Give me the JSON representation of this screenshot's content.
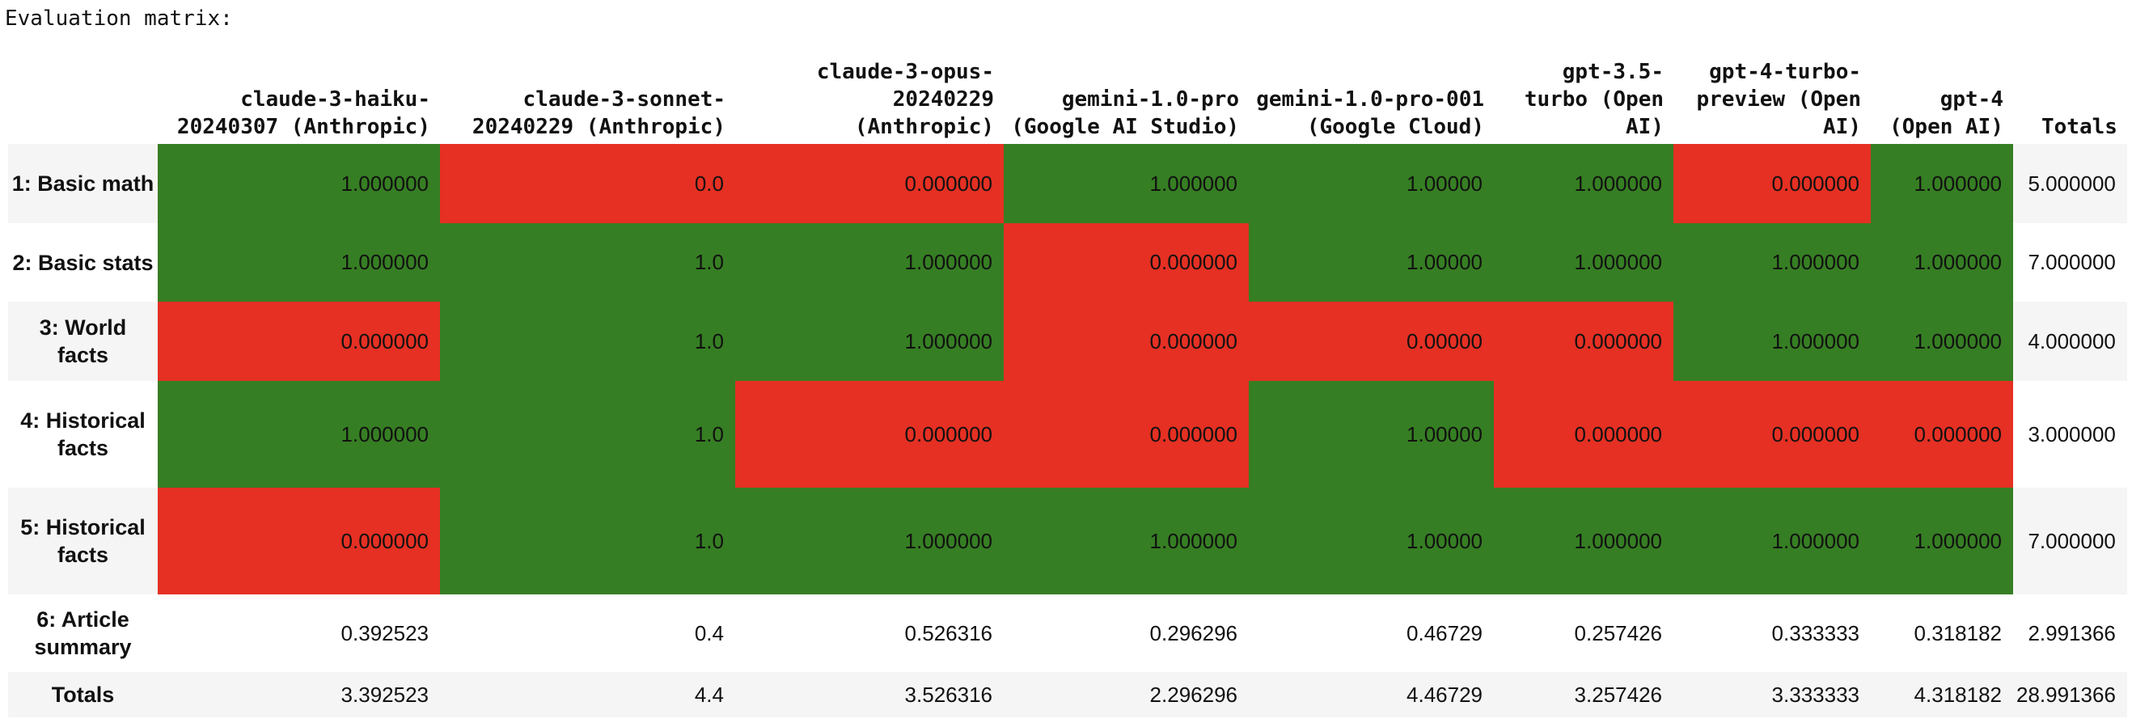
{
  "caption": "Evaluation matrix:",
  "colors": {
    "pass": "#367e23",
    "fail": "#e53023",
    "stripe": "#f5f5f5"
  },
  "columns": [
    "claude-3-haiku-20240307 (Anthropic)",
    "claude-3-sonnet-20240229 (Anthropic)",
    "claude-3-opus-20240229 (Anthropic)",
    "gemini-1.0-pro (Google AI Studio)",
    "gemini-1.0-pro-001 (Google Cloud)",
    "gpt-3.5-turbo (Open AI)",
    "gpt-4-turbo-preview (Open AI)",
    "gpt-4 (Open AI)",
    "Totals"
  ],
  "rows": [
    {
      "label": "1: Basic math",
      "status": [
        "pass",
        "fail",
        "fail",
        "pass",
        "pass",
        "pass",
        "fail",
        "pass"
      ],
      "cells": [
        "1.000000",
        "0.0",
        "0.000000",
        "1.000000",
        "1.00000",
        "1.000000",
        "0.000000",
        "1.000000",
        "5.000000"
      ]
    },
    {
      "label": "2: Basic stats",
      "status": [
        "pass",
        "pass",
        "pass",
        "fail",
        "pass",
        "pass",
        "pass",
        "pass"
      ],
      "cells": [
        "1.000000",
        "1.0",
        "1.000000",
        "0.000000",
        "1.00000",
        "1.000000",
        "1.000000",
        "1.000000",
        "7.000000"
      ]
    },
    {
      "label": "3: World facts",
      "status": [
        "fail",
        "pass",
        "pass",
        "fail",
        "fail",
        "fail",
        "pass",
        "pass"
      ],
      "cells": [
        "0.000000",
        "1.0",
        "1.000000",
        "0.000000",
        "0.00000",
        "0.000000",
        "1.000000",
        "1.000000",
        "4.000000"
      ]
    },
    {
      "label": "4: Historical facts",
      "status": [
        "pass",
        "pass",
        "fail",
        "fail",
        "pass",
        "fail",
        "fail",
        "fail"
      ],
      "cells": [
        "1.000000",
        "1.0",
        "0.000000",
        "0.000000",
        "1.00000",
        "0.000000",
        "0.000000",
        "0.000000",
        "3.000000"
      ]
    },
    {
      "label": "5: Historical facts",
      "status": [
        "fail",
        "pass",
        "pass",
        "pass",
        "pass",
        "pass",
        "pass",
        "pass"
      ],
      "cells": [
        "0.000000",
        "1.0",
        "1.000000",
        "1.000000",
        "1.00000",
        "1.000000",
        "1.000000",
        "1.000000",
        "7.000000"
      ]
    },
    {
      "label": "6: Article summary",
      "status": [],
      "cells": [
        "0.392523",
        "0.4",
        "0.526316",
        "0.296296",
        "0.46729",
        "0.257426",
        "0.333333",
        "0.318182",
        "2.991366"
      ]
    },
    {
      "label": "Totals",
      "status": [],
      "cells": [
        "3.392523",
        "4.4",
        "3.526316",
        "2.296296",
        "4.46729",
        "3.257426",
        "3.333333",
        "4.318182",
        "28.991366"
      ]
    }
  ]
}
